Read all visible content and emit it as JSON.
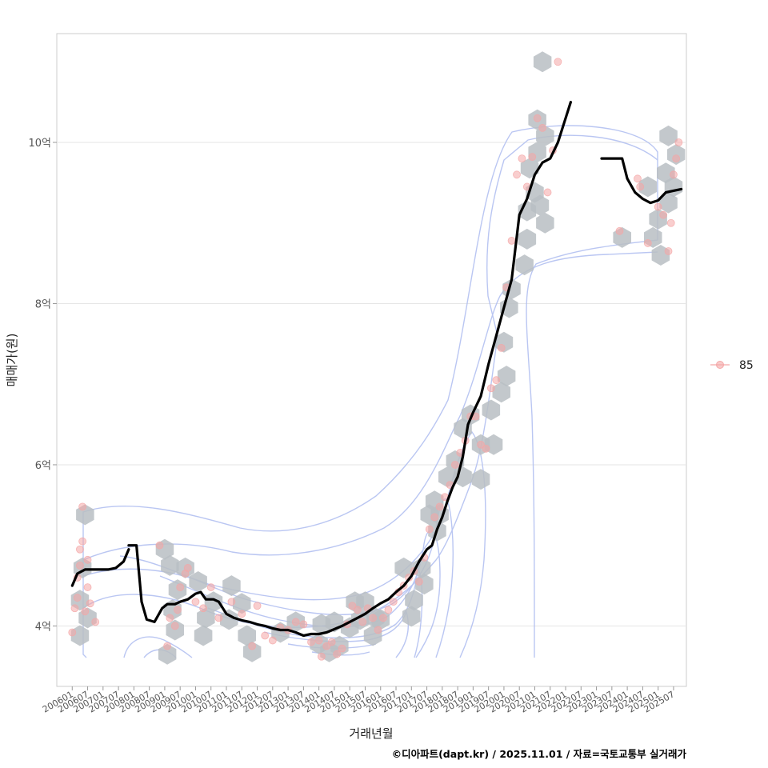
{
  "chart_data": {
    "type": "scatter",
    "title": "",
    "xlabel": "거래년월",
    "ylabel": "매매가(원)",
    "caption": "©디아파트(dapt.kr) / 2025.11.01 / 자료=국토교통부 실거래가",
    "legend": {
      "entries": [
        "85"
      ],
      "placement": "right"
    },
    "ylim": [
      3.25,
      11.35
    ],
    "y_ticks": [
      {
        "value": 4,
        "label": "4억"
      },
      {
        "value": 6,
        "label": "6억"
      },
      {
        "value": 8,
        "label": "8억"
      },
      {
        "value": 10,
        "label": "10억"
      }
    ],
    "x_range": [
      "200507",
      "202512"
    ],
    "x_ticks": [
      "200601",
      "200607",
      "200701",
      "200707",
      "200801",
      "200807",
      "200901",
      "200907",
      "201001",
      "201007",
      "201101",
      "201107",
      "201201",
      "201207",
      "201301",
      "201307",
      "201401",
      "201407",
      "201501",
      "201507",
      "201601",
      "201607",
      "201701",
      "201707",
      "201801",
      "201807",
      "201901",
      "201907",
      "202001",
      "202007",
      "202101",
      "202107",
      "202201",
      "202207",
      "202301",
      "202307",
      "202401",
      "202407",
      "202501",
      "202507"
    ],
    "series": [
      {
        "name": "moving-average",
        "type": "line",
        "color": "#000000",
        "segments": [
          [
            [
              "200601",
              4.5
            ],
            [
              "200603",
              4.65
            ],
            [
              "200606",
              4.7
            ],
            [
              "200609",
              4.7
            ],
            [
              "200612",
              4.7
            ],
            [
              "200703",
              4.7
            ],
            [
              "200706",
              4.72
            ],
            [
              "200709",
              4.8
            ],
            [
              "200711",
              4.95
            ]
          ],
          [
            [
              "200711",
              5.0
            ],
            [
              "200802",
              5.0
            ],
            [
              "200804",
              4.3
            ],
            [
              "200806",
              4.08
            ],
            [
              "200809",
              4.05
            ],
            [
              "200812",
              4.22
            ],
            [
              "200902",
              4.27
            ],
            [
              "200905",
              4.27
            ],
            [
              "200907",
              4.3
            ],
            [
              "200910",
              4.33
            ],
            [
              "201001",
              4.4
            ],
            [
              "201003",
              4.42
            ],
            [
              "201005",
              4.33
            ],
            [
              "201008",
              4.33
            ],
            [
              "201010",
              4.3
            ],
            [
              "201101",
              4.15
            ],
            [
              "201104",
              4.1
            ],
            [
              "201107",
              4.07
            ],
            [
              "201110",
              4.05
            ],
            [
              "201201",
              4.02
            ],
            [
              "201204",
              4.0
            ],
            [
              "201207",
              3.97
            ],
            [
              "201210",
              3.95
            ],
            [
              "201301",
              3.95
            ],
            [
              "201304",
              3.92
            ],
            [
              "201307",
              3.88
            ],
            [
              "201310",
              3.9
            ],
            [
              "201401",
              3.9
            ],
            [
              "201404",
              3.92
            ],
            [
              "201407",
              3.96
            ],
            [
              "201410",
              4.0
            ],
            [
              "201501",
              4.05
            ],
            [
              "201504",
              4.1
            ],
            [
              "201507",
              4.15
            ],
            [
              "201510",
              4.22
            ],
            [
              "201601",
              4.28
            ],
            [
              "201604",
              4.33
            ],
            [
              "201607",
              4.42
            ],
            [
              "201610",
              4.5
            ],
            [
              "201701",
              4.62
            ],
            [
              "201704",
              4.8
            ],
            [
              "201707",
              4.95
            ],
            [
              "201709",
              5.0
            ],
            [
              "201711",
              5.2
            ],
            [
              "201801",
              5.35
            ],
            [
              "201803",
              5.55
            ],
            [
              "201805",
              5.72
            ],
            [
              "201807",
              5.85
            ],
            [
              "201809",
              6.1
            ],
            [
              "201811",
              6.5
            ],
            [
              "201901",
              6.65
            ],
            [
              "201904",
              6.85
            ],
            [
              "201907",
              7.25
            ],
            [
              "201910",
              7.6
            ],
            [
              "202001",
              7.95
            ],
            [
              "202004",
              8.3
            ],
            [
              "202007",
              9.1
            ],
            [
              "202010",
              9.3
            ],
            [
              "202101",
              9.6
            ],
            [
              "202104",
              9.75
            ],
            [
              "202107",
              9.8
            ],
            [
              "202110",
              10.0
            ],
            [
              "202201",
              10.3
            ],
            [
              "202203",
              10.5
            ]
          ],
          [
            [
              "202303",
              9.8
            ],
            [
              "202307",
              9.8
            ],
            [
              "202311",
              9.8
            ],
            [
              "202401",
              9.55
            ],
            [
              "202404",
              9.38
            ],
            [
              "202407",
              9.3
            ],
            [
              "202410",
              9.25
            ],
            [
              "202501",
              9.28
            ],
            [
              "202504",
              9.38
            ],
            [
              "202507",
              9.4
            ],
            [
              "202510",
              9.42
            ]
          ]
        ]
      },
      {
        "name": "85",
        "type": "scatter",
        "color": "#f4a6a6",
        "points": [
          [
            "200601",
            3.92
          ],
          [
            "200602",
            4.22
          ],
          [
            "200603",
            4.35
          ],
          [
            "200603",
            4.6
          ],
          [
            "200604",
            4.75
          ],
          [
            "200604",
            4.95
          ],
          [
            "200605",
            5.05
          ],
          [
            "200605",
            5.48
          ],
          [
            "200606",
            4.18
          ],
          [
            "200607",
            4.48
          ],
          [
            "200607",
            4.82
          ],
          [
            "200608",
            4.28
          ],
          [
            "200610",
            4.05
          ],
          [
            "200811",
            5.0
          ],
          [
            "200902",
            3.75
          ],
          [
            "200903",
            4.1
          ],
          [
            "200905",
            4.0
          ],
          [
            "200906",
            4.2
          ],
          [
            "200907",
            4.48
          ],
          [
            "200909",
            4.65
          ],
          [
            "200910",
            4.72
          ],
          [
            "201001",
            4.3
          ],
          [
            "201004",
            4.22
          ],
          [
            "201007",
            4.48
          ],
          [
            "201010",
            4.1
          ],
          [
            "201103",
            4.3
          ],
          [
            "201107",
            4.15
          ],
          [
            "201111",
            3.75
          ],
          [
            "201201",
            4.25
          ],
          [
            "201204",
            3.88
          ],
          [
            "201207",
            3.82
          ],
          [
            "201210",
            3.98
          ],
          [
            "201301",
            3.95
          ],
          [
            "201304",
            4.05
          ],
          [
            "201307",
            4.02
          ],
          [
            "201310",
            3.8
          ],
          [
            "201401",
            3.82
          ],
          [
            "201402",
            3.62
          ],
          [
            "201404",
            3.75
          ],
          [
            "201406",
            3.8
          ],
          [
            "201408",
            3.65
          ],
          [
            "201410",
            3.72
          ],
          [
            "201412",
            4.02
          ],
          [
            "201502",
            4.25
          ],
          [
            "201504",
            4.2
          ],
          [
            "201506",
            4.05
          ],
          [
            "201508",
            4.22
          ],
          [
            "201510",
            4.1
          ],
          [
            "201512",
            3.95
          ],
          [
            "201602",
            4.1
          ],
          [
            "201604",
            4.2
          ],
          [
            "201606",
            4.3
          ],
          [
            "201608",
            4.42
          ],
          [
            "201610",
            4.5
          ],
          [
            "201612",
            4.6
          ],
          [
            "201702",
            4.68
          ],
          [
            "201704",
            4.55
          ],
          [
            "201706",
            4.85
          ],
          [
            "201708",
            5.2
          ],
          [
            "201710",
            5.35
          ],
          [
            "201712",
            5.48
          ],
          [
            "201802",
            5.6
          ],
          [
            "201804",
            5.75
          ],
          [
            "201806",
            6.0
          ],
          [
            "201808",
            6.15
          ],
          [
            "201810",
            6.3
          ],
          [
            "201812",
            6.6
          ],
          [
            "201902",
            6.6
          ],
          [
            "201904",
            6.25
          ],
          [
            "201906",
            6.2
          ],
          [
            "201908",
            6.95
          ],
          [
            "201910",
            7.05
          ],
          [
            "201912",
            7.45
          ],
          [
            "202002",
            8.2
          ],
          [
            "202004",
            8.78
          ],
          [
            "202006",
            9.6
          ],
          [
            "202008",
            9.8
          ],
          [
            "202010",
            9.45
          ],
          [
            "202012",
            9.82
          ],
          [
            "202102",
            10.3
          ],
          [
            "202104",
            10.18
          ],
          [
            "202106",
            9.38
          ],
          [
            "202108",
            9.9
          ],
          [
            "202110",
            11.0
          ],
          [
            "202310",
            8.9
          ],
          [
            "202405",
            9.55
          ],
          [
            "202406",
            9.45
          ],
          [
            "202409",
            8.75
          ],
          [
            "202501",
            9.2
          ],
          [
            "202503",
            9.1
          ],
          [
            "202505",
            8.65
          ],
          [
            "202507",
            9.6
          ],
          [
            "202508",
            9.8
          ],
          [
            "202509",
            10.0
          ],
          [
            "202506",
            9.0
          ]
        ]
      },
      {
        "name": "hexbin-density",
        "type": "hexbin",
        "color": "#b8bec3",
        "cells": [
          [
            "200606",
            5.38
          ],
          [
            "200605",
            4.72
          ],
          [
            "200604",
            4.32
          ],
          [
            "200607",
            4.1
          ],
          [
            "200604",
            3.88
          ],
          [
            "200901",
            4.95
          ],
          [
            "200903",
            4.75
          ],
          [
            "200902",
            3.65
          ],
          [
            "200906",
            4.45
          ],
          [
            "200904",
            4.2
          ],
          [
            "200905",
            3.95
          ],
          [
            "200909",
            4.72
          ],
          [
            "201002",
            4.55
          ],
          [
            "201005",
            4.1
          ],
          [
            "201004",
            3.88
          ],
          [
            "201008",
            4.3
          ],
          [
            "201103",
            4.5
          ],
          [
            "201102",
            4.08
          ],
          [
            "201107",
            4.28
          ],
          [
            "201109",
            3.88
          ],
          [
            "201111",
            3.68
          ],
          [
            "201210",
            3.92
          ],
          [
            "201304",
            4.05
          ],
          [
            "201402",
            4.02
          ],
          [
            "201401",
            3.78
          ],
          [
            "201405",
            3.68
          ],
          [
            "201409",
            3.75
          ],
          [
            "201407",
            4.05
          ],
          [
            "201503",
            4.3
          ],
          [
            "201501",
            3.98
          ],
          [
            "201507",
            4.3
          ],
          [
            "201505",
            4.08
          ],
          [
            "201511",
            4.1
          ],
          [
            "201510",
            3.88
          ],
          [
            "201601",
            4.08
          ],
          [
            "201610",
            4.72
          ],
          [
            "201702",
            4.32
          ],
          [
            "201701",
            4.12
          ],
          [
            "201705",
            4.72
          ],
          [
            "201706",
            4.52
          ],
          [
            "201708",
            5.38
          ],
          [
            "201710",
            5.55
          ],
          [
            "201712",
            5.38
          ],
          [
            "201711",
            5.18
          ],
          [
            "201803",
            5.85
          ],
          [
            "201806",
            6.05
          ],
          [
            "201809",
            6.45
          ],
          [
            "201812",
            6.62
          ],
          [
            "201809",
            5.85
          ],
          [
            "201904",
            6.25
          ],
          [
            "201904",
            5.82
          ],
          [
            "201908",
            6.68
          ],
          [
            "201912",
            6.9
          ],
          [
            "202002",
            7.1
          ],
          [
            "202001",
            7.52
          ],
          [
            "202003",
            7.95
          ],
          [
            "202004",
            8.18
          ],
          [
            "201909",
            6.25
          ],
          [
            "202009",
            8.48
          ],
          [
            "202010",
            8.8
          ],
          [
            "202010",
            9.15
          ],
          [
            "202011",
            9.68
          ],
          [
            "202101",
            9.38
          ],
          [
            "202103",
            9.22
          ],
          [
            "202102",
            9.88
          ],
          [
            "202102",
            10.28
          ],
          [
            "202105",
            10.08
          ],
          [
            "202104",
            11.0
          ],
          [
            "202105",
            9.0
          ],
          [
            "202311",
            8.82
          ],
          [
            "202409",
            9.45
          ],
          [
            "202411",
            8.82
          ],
          [
            "202501",
            9.05
          ],
          [
            "202502",
            8.6
          ],
          [
            "202505",
            9.25
          ],
          [
            "202504",
            9.62
          ],
          [
            "202507",
            9.45
          ],
          [
            "202508",
            9.85
          ],
          [
            "202505",
            10.08
          ]
        ]
      },
      {
        "name": "density-contours",
        "type": "contour",
        "color": "#8aa6e8",
        "levels": 9
      }
    ]
  }
}
